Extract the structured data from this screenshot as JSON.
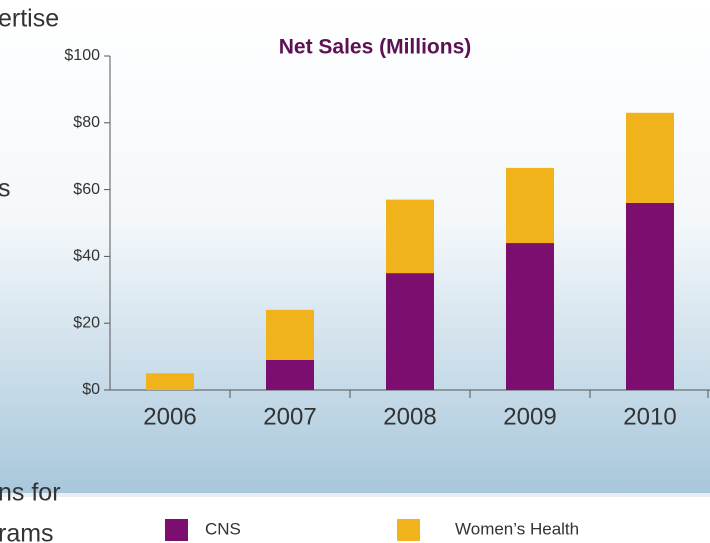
{
  "chart_data": {
    "type": "bar",
    "stacked": true,
    "title": "Net Sales (Millions)",
    "categories": [
      "2006",
      "2007",
      "2008",
      "2009",
      "2010"
    ],
    "series": [
      {
        "name": "CNS",
        "color": "#7b0e6e",
        "values": [
          0,
          9,
          35,
          44,
          56
        ]
      },
      {
        "name": "Women’s Health",
        "color": "#f0b31c",
        "values": [
          5,
          15,
          22,
          22.5,
          27
        ]
      }
    ],
    "ylim": [
      0,
      100
    ],
    "yticks": [
      {
        "value": 0,
        "label": "$0"
      },
      {
        "value": 20,
        "label": "$20"
      },
      {
        "value": 40,
        "label": "$40"
      },
      {
        "value": 60,
        "label": "$60"
      },
      {
        "value": 80,
        "label": "$80"
      },
      {
        "value": 100,
        "label": "$100"
      }
    ],
    "grid": false,
    "legend": "bottom"
  },
  "background_text": [
    "ertise",
    "s",
    "ns for",
    "rams"
  ]
}
